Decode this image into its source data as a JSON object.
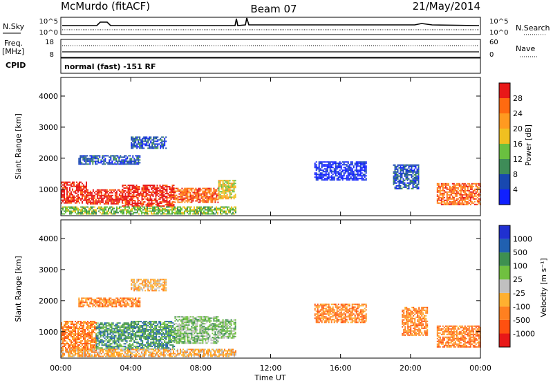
{
  "header": {
    "station": "McMurdo (fitACF)",
    "beam": "Beam 07",
    "date": "21/May/2014"
  },
  "top_panel": {
    "nsky_label": "N.Sky",
    "nsearch_label": "N.Search",
    "left_ticks": [
      "10^5",
      "10^0"
    ],
    "right_ticks": [
      "10^5",
      "10^0"
    ]
  },
  "freq_panel": {
    "freq_label": "Freq.",
    "freq_unit": "[MHz]",
    "freq_ticks": [
      "18",
      "8"
    ],
    "nave_label": "Nave",
    "nave_ticks": [
      "60",
      "0"
    ]
  },
  "cpid_panel": {
    "cpid_label": "CPID",
    "mode_text": "normal (fast) -151 RF"
  },
  "x_axis": {
    "title": "Time UT",
    "ticks": [
      "00:00",
      "04:00",
      "08:00",
      "12:00",
      "16:00",
      "20:00",
      "00:00"
    ]
  },
  "chart_data": [
    {
      "type": "heatmap",
      "name": "power",
      "ylabel": "Slant Range [km]",
      "y_ticks": [
        1000,
        2000,
        3000,
        4000
      ],
      "ylim": [
        150,
        4600
      ],
      "xlim_hours": [
        0,
        24
      ],
      "colorbar": {
        "label": "Power [dB]",
        "ticks": [
          "4",
          "8",
          "12",
          "16",
          "20",
          "24",
          "28"
        ],
        "colors": [
          "#1020ff",
          "#1848b0",
          "#3e8c58",
          "#6ac040",
          "#f0c020",
          "#ff9a20",
          "#ff6a10",
          "#e81818"
        ]
      },
      "echo_regions": [
        {
          "t": [
            0.0,
            1.5
          ],
          "range": [
            550,
            1250
          ],
          "level": 7
        },
        {
          "t": [
            1.5,
            3.5
          ],
          "range": [
            550,
            1000
          ],
          "level": 7
        },
        {
          "t": [
            3.5,
            6.5
          ],
          "range": [
            450,
            1150
          ],
          "level": 7
        },
        {
          "t": [
            6.5,
            9.0
          ],
          "range": [
            600,
            1050
          ],
          "level": 6
        },
        {
          "t": [
            9.0,
            10.0
          ],
          "range": [
            700,
            1300
          ],
          "level": 4
        },
        {
          "t": [
            0.0,
            10.0
          ],
          "range": [
            200,
            450
          ],
          "level": 3
        },
        {
          "t": [
            1.0,
            4.5
          ],
          "range": [
            1800,
            2100
          ],
          "level": 1
        },
        {
          "t": [
            4.0,
            6.0
          ],
          "range": [
            2300,
            2700
          ],
          "level": 1
        },
        {
          "t": [
            14.5,
            17.5
          ],
          "range": [
            1300,
            1900
          ],
          "level": 0
        },
        {
          "t": [
            19.0,
            20.5
          ],
          "range": [
            1000,
            1800
          ],
          "level": 1
        },
        {
          "t": [
            21.5,
            24.0
          ],
          "range": [
            500,
            1200
          ],
          "level": 6
        }
      ]
    },
    {
      "type": "heatmap",
      "name": "velocity",
      "ylabel": "Slant Range [km]",
      "y_ticks": [
        1000,
        2000,
        3000,
        4000
      ],
      "ylim": [
        150,
        4600
      ],
      "xlim_hours": [
        0,
        24
      ],
      "colorbar": {
        "label": "Velocity [m s⁻¹]",
        "ticks": [
          "-1000",
          "-500",
          "-100",
          "-25",
          "25",
          "100",
          "500",
          "1000"
        ],
        "colors": [
          "#e81818",
          "#ff5010",
          "#ff8020",
          "#ffb030",
          "#c0c0c0",
          "#70c040",
          "#3e9050",
          "#2060b0",
          "#2030d0"
        ]
      },
      "echo_regions": [
        {
          "t": [
            0.0,
            2.0
          ],
          "range": [
            400,
            1350
          ],
          "level": 2
        },
        {
          "t": [
            2.0,
            4.0
          ],
          "range": [
            450,
            1300
          ],
          "level": 6
        },
        {
          "t": [
            4.0,
            6.5
          ],
          "range": [
            450,
            1350
          ],
          "level": 6
        },
        {
          "t": [
            6.5,
            9.0
          ],
          "range": [
            650,
            1500
          ],
          "level": 5
        },
        {
          "t": [
            9.0,
            10.0
          ],
          "range": [
            800,
            1400
          ],
          "level": 5
        },
        {
          "t": [
            0.0,
            10.0
          ],
          "range": [
            200,
            450
          ],
          "level": 3
        },
        {
          "t": [
            1.0,
            4.5
          ],
          "range": [
            1800,
            2100
          ],
          "level": 2
        },
        {
          "t": [
            4.0,
            6.0
          ],
          "range": [
            2300,
            2700
          ],
          "level": 3
        },
        {
          "t": [
            14.5,
            17.5
          ],
          "range": [
            1300,
            1900
          ],
          "level": 2
        },
        {
          "t": [
            19.5,
            21.0
          ],
          "range": [
            900,
            1800
          ],
          "level": 2
        },
        {
          "t": [
            21.5,
            24.0
          ],
          "range": [
            500,
            1200
          ],
          "level": 2
        }
      ]
    }
  ]
}
